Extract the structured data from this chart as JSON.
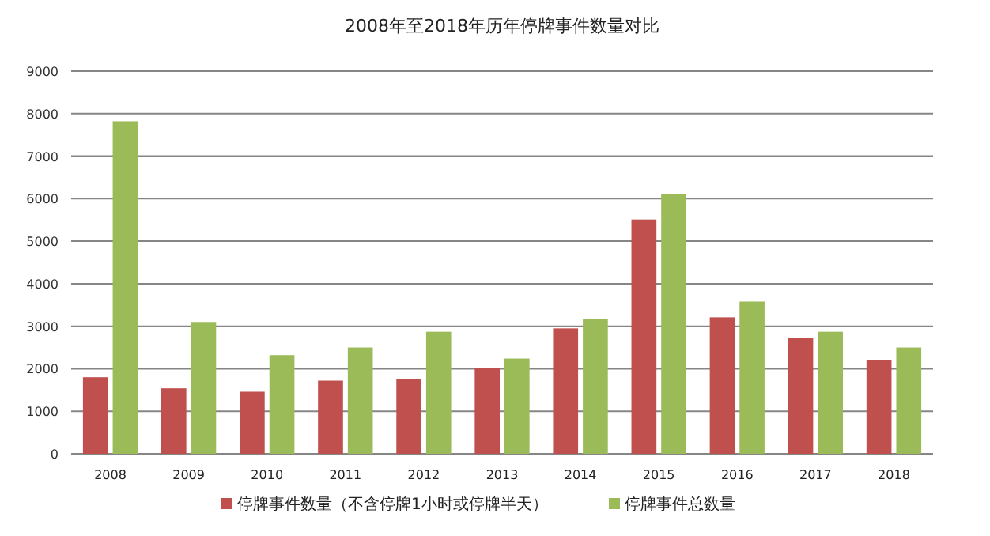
{
  "chart_data": {
    "type": "bar",
    "title": "2008年至2018年历年停牌事件数量对比",
    "categories": [
      "2008",
      "2009",
      "2010",
      "2011",
      "2012",
      "2013",
      "2014",
      "2015",
      "2016",
      "2017",
      "2018"
    ],
    "series": [
      {
        "name": "停牌事件数量（不含停牌1小时或停牌半天）",
        "color": "#c0504d",
        "values": [
          1800,
          1540,
          1460,
          1720,
          1760,
          2020,
          2950,
          5510,
          3210,
          2730,
          2210
        ]
      },
      {
        "name": "停牌事件总数量",
        "color": "#9bbb59",
        "values": [
          7820,
          3100,
          2320,
          2500,
          2870,
          2240,
          3170,
          6110,
          3580,
          2870,
          2500
        ]
      }
    ],
    "ylim": [
      0,
      9000
    ],
    "yticks": [
      0,
      1000,
      2000,
      3000,
      4000,
      5000,
      6000,
      7000,
      8000,
      9000
    ],
    "grid": "y",
    "legend": "bottom"
  }
}
